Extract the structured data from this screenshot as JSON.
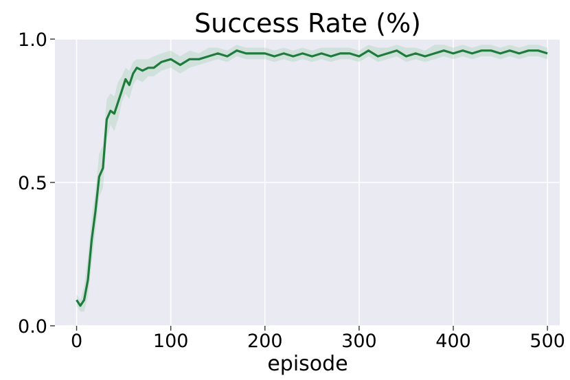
{
  "chart_data": {
    "type": "line",
    "title": "Success Rate (%)",
    "xlabel": "episode",
    "ylabel": "",
    "xlim": [
      -23,
      513
    ],
    "ylim": [
      0.0,
      1.0
    ],
    "x_ticks": [
      0,
      100,
      200,
      300,
      400,
      500
    ],
    "y_ticks": [
      0.0,
      0.5,
      1.0
    ],
    "y_tick_labels": [
      "0.0",
      "0.5",
      "1.0"
    ],
    "grid": true,
    "background": "#eaeaf2",
    "colors": {
      "line": "#1e7b3c",
      "band": "#9fd0b0"
    },
    "series": [
      {
        "x": [
          0,
          4,
          8,
          12,
          16,
          20,
          24,
          28,
          32,
          36,
          40,
          44,
          48,
          52,
          56,
          60,
          64,
          70,
          76,
          82,
          90,
          100,
          110,
          120,
          130,
          140,
          150,
          160,
          170,
          180,
          190,
          200,
          210,
          220,
          230,
          240,
          250,
          260,
          270,
          280,
          290,
          300,
          310,
          320,
          330,
          340,
          350,
          360,
          370,
          380,
          390,
          400,
          410,
          420,
          430,
          440,
          450,
          460,
          470,
          480,
          490,
          500
        ],
        "y": [
          0.09,
          0.07,
          0.09,
          0.16,
          0.3,
          0.4,
          0.52,
          0.55,
          0.72,
          0.75,
          0.74,
          0.78,
          0.82,
          0.86,
          0.84,
          0.88,
          0.9,
          0.89,
          0.9,
          0.9,
          0.92,
          0.93,
          0.91,
          0.93,
          0.93,
          0.94,
          0.95,
          0.94,
          0.96,
          0.95,
          0.95,
          0.95,
          0.94,
          0.95,
          0.94,
          0.95,
          0.94,
          0.95,
          0.94,
          0.95,
          0.95,
          0.94,
          0.96,
          0.94,
          0.95,
          0.96,
          0.94,
          0.95,
          0.94,
          0.95,
          0.96,
          0.95,
          0.96,
          0.95,
          0.96,
          0.96,
          0.95,
          0.96,
          0.95,
          0.96,
          0.96,
          0.95
        ],
        "y_lower": [
          0.07,
          0.05,
          0.05,
          0.1,
          0.22,
          0.33,
          0.45,
          0.48,
          0.65,
          0.7,
          0.68,
          0.72,
          0.78,
          0.81,
          0.79,
          0.84,
          0.86,
          0.85,
          0.87,
          0.87,
          0.89,
          0.9,
          0.88,
          0.9,
          0.91,
          0.92,
          0.93,
          0.92,
          0.94,
          0.93,
          0.93,
          0.93,
          0.92,
          0.93,
          0.92,
          0.93,
          0.92,
          0.93,
          0.92,
          0.93,
          0.93,
          0.92,
          0.94,
          0.92,
          0.93,
          0.94,
          0.92,
          0.93,
          0.92,
          0.93,
          0.94,
          0.93,
          0.94,
          0.93,
          0.94,
          0.94,
          0.93,
          0.94,
          0.93,
          0.94,
          0.94,
          0.93
        ],
        "y_upper": [
          0.11,
          0.09,
          0.14,
          0.24,
          0.38,
          0.47,
          0.6,
          0.63,
          0.79,
          0.81,
          0.8,
          0.85,
          0.87,
          0.9,
          0.89,
          0.92,
          0.93,
          0.93,
          0.93,
          0.94,
          0.95,
          0.96,
          0.94,
          0.96,
          0.95,
          0.97,
          0.97,
          0.96,
          0.98,
          0.97,
          0.97,
          0.97,
          0.96,
          0.97,
          0.96,
          0.97,
          0.96,
          0.97,
          0.97,
          0.97,
          0.97,
          0.96,
          0.98,
          0.97,
          0.97,
          0.98,
          0.97,
          0.97,
          0.96,
          0.98,
          0.98,
          0.97,
          0.98,
          0.97,
          0.98,
          0.98,
          0.97,
          0.98,
          0.97,
          0.98,
          0.98,
          0.97
        ]
      }
    ]
  }
}
